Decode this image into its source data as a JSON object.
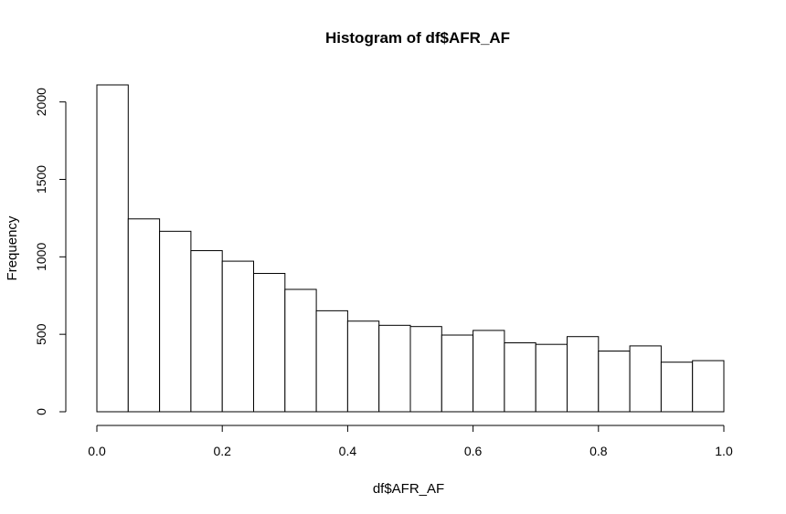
{
  "chart_data": {
    "type": "bar",
    "title": "Histogram of df$AFR_AF",
    "xlabel": "df$AFR_AF",
    "ylabel": "Frequency",
    "bin_edges": [
      0.0,
      0.05,
      0.1,
      0.15,
      0.2,
      0.25,
      0.3,
      0.35,
      0.4,
      0.45,
      0.5,
      0.55,
      0.6,
      0.65,
      0.7,
      0.75,
      0.8,
      0.85,
      0.9,
      0.95,
      1.0
    ],
    "values": [
      2110,
      1245,
      1165,
      1040,
      972,
      893,
      790,
      652,
      585,
      558,
      550,
      495,
      525,
      445,
      435,
      485,
      392,
      425,
      320,
      330
    ],
    "xlim": [
      0,
      1
    ],
    "ylim": [
      0,
      2110
    ],
    "x_ticks": [
      0.0,
      0.2,
      0.4,
      0.6,
      0.8,
      1.0
    ],
    "x_tick_labels": [
      "0.0",
      "0.2",
      "0.4",
      "0.6",
      "0.8",
      "1.0"
    ],
    "y_ticks": [
      0,
      500,
      1000,
      1500,
      2000
    ],
    "y_tick_labels": [
      "0",
      "500",
      "1000",
      "1500",
      "2000"
    ],
    "grid": false,
    "legend": "none"
  }
}
